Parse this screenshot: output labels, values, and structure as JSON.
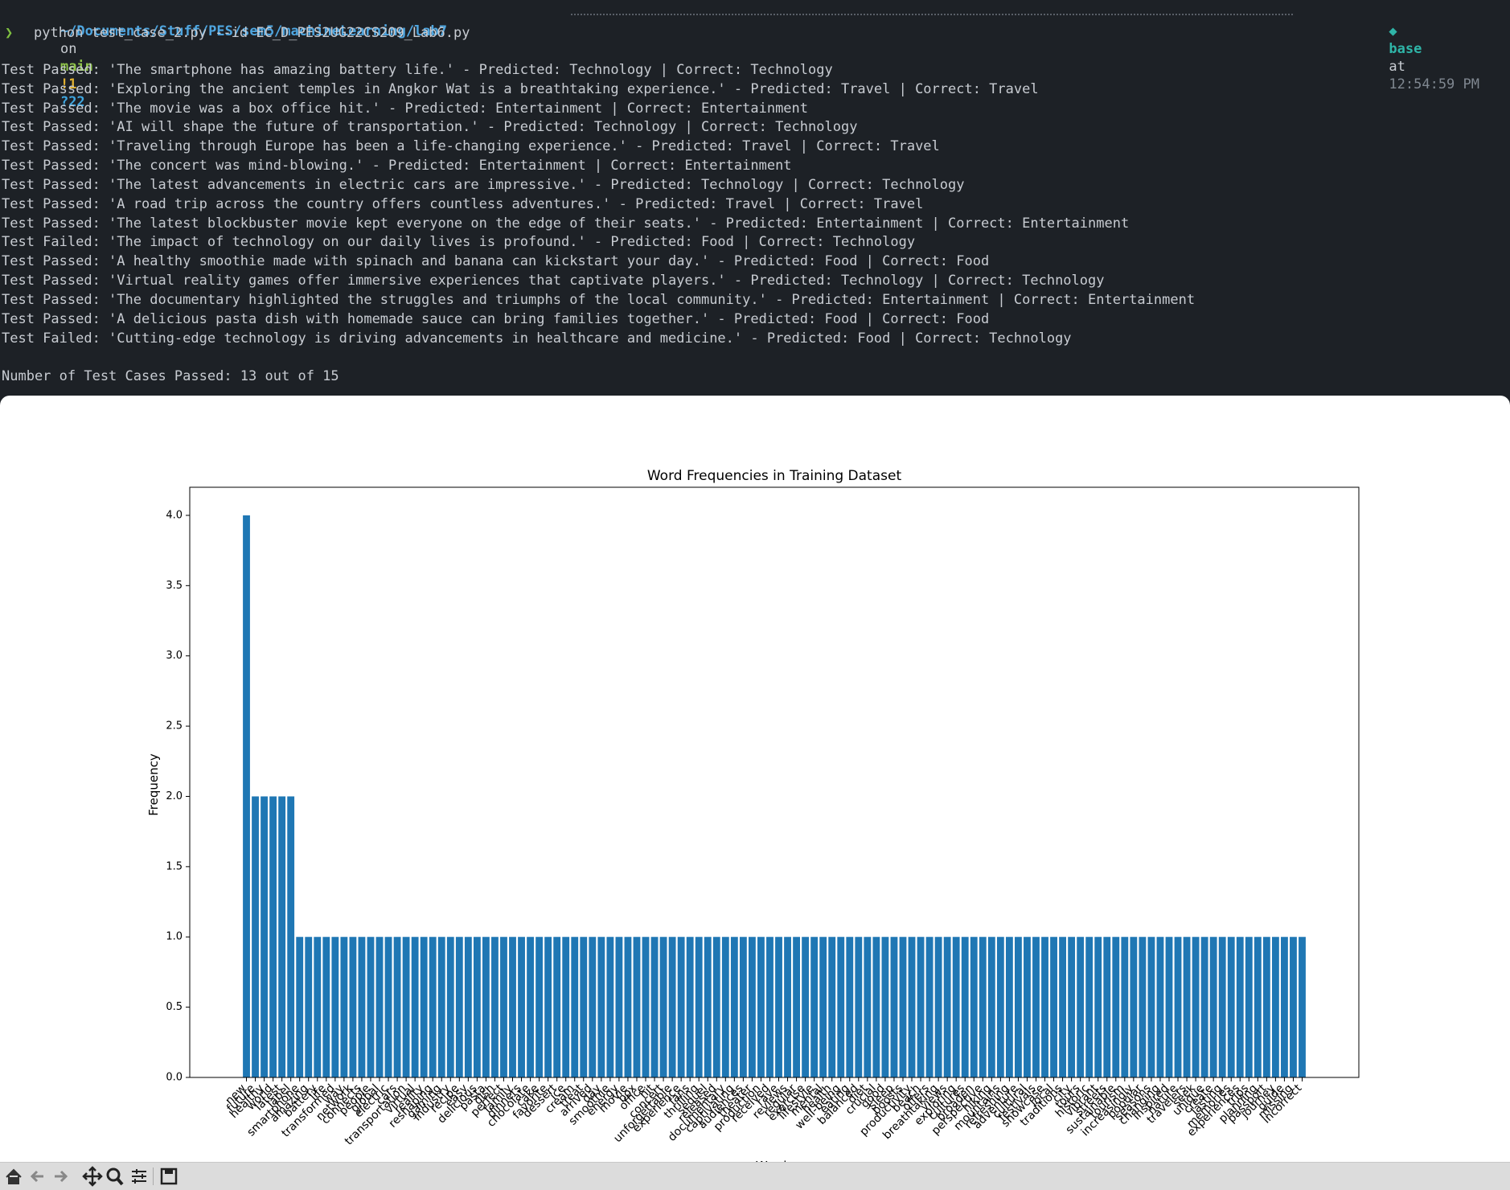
{
  "terminal": {
    "prompt": {
      "path": "~/Documents/Stuff/PES/sem5/machineLearning/lab7",
      "on": "on",
      "branch": "main",
      "modified": "!1",
      "untracked": "?22",
      "env": "base",
      "at": "at",
      "time": "12:54:59 PM"
    },
    "command": "python test_case_2.py --id EC_D_PES2UG22CS209_Lab6.py",
    "lines": [
      "Test Passed: 'The smartphone has amazing battery life.' - Predicted: Technology | Correct: Technology",
      "Test Passed: 'Exploring the ancient temples in Angkor Wat is a breathtaking experience.' - Predicted: Travel | Correct: Travel",
      "Test Passed: 'The movie was a box office hit.' - Predicted: Entertainment | Correct: Entertainment",
      "Test Passed: 'AI will shape the future of transportation.' - Predicted: Technology | Correct: Technology",
      "Test Passed: 'Traveling through Europe has been a life-changing experience.' - Predicted: Travel | Correct: Travel",
      "Test Passed: 'The concert was mind-blowing.' - Predicted: Entertainment | Correct: Entertainment",
      "Test Passed: 'The latest advancements in electric cars are impressive.' - Predicted: Technology | Correct: Technology",
      "Test Passed: 'A road trip across the country offers countless adventures.' - Predicted: Travel | Correct: Travel",
      "Test Passed: 'The latest blockbuster movie kept everyone on the edge of their seats.' - Predicted: Entertainment | Correct: Entertainment",
      "Test Failed: 'The impact of technology on our daily lives is profound.' - Predicted: Food | Correct: Technology",
      "Test Passed: 'A healthy smoothie made with spinach and banana can kickstart your day.' - Predicted: Food | Correct: Food",
      "Test Passed: 'Virtual reality games offer immersive experiences that captivate players.' - Predicted: Technology | Correct: Technology",
      "Test Passed: 'The documentary highlighted the struggles and triumphs of the local community.' - Predicted: Entertainment | Correct: Entertainment",
      "Test Passed: 'A delicious pasta dish with homemade sauce can bring families together.' - Predicted: Food | Correct: Food",
      "Test Failed: 'Cutting-edge technology is driving advancements in healthcare and medicine.' - Predicted: Food | Correct: Technology"
    ],
    "summary": "Number of Test Cases Passed: 13 out of 15"
  },
  "chart_data": {
    "type": "bar",
    "title": "Word Frequencies in Training Dataset",
    "xlabel": "Words",
    "ylabel": "Frequency",
    "color": "#1f77b4",
    "categories": [
      "new",
      "future",
      "healthy",
      "world",
      "latest",
      "label",
      "smartphone",
      "amazing",
      "battery",
      "life",
      "transformed",
      "way",
      "network",
      "connects",
      "people",
      "global",
      "electric",
      "cars",
      "transportation",
      "virtual",
      "reality",
      "reshaping",
      "gaming",
      "industry",
      "recipe",
      "easy",
      "delicious",
      "pasta",
      "dish",
      "perfect",
      "family",
      "dinners",
      "chocolate",
      "cake",
      "favorite",
      "dessert",
      "ice",
      "cream",
      "treat",
      "arrived",
      "day",
      "smoothie",
      "energy",
      "movie",
      "box",
      "office",
      "hit",
      "concert",
      "unforgettable",
      "experience",
      "fans",
      "thrilling",
      "sequel",
      "released",
      "documentary",
      "captivating",
      "audiences",
      "theater",
      "production",
      "received",
      "rave",
      "reviews",
      "regular",
      "exercise",
      "lifestyle",
      "mental",
      "health",
      "well-being",
      "eating",
      "balanced",
      "diet",
      "crucial",
      "good",
      "sleep",
      "boosts",
      "productivity",
      "beach",
      "offers",
      "breathtaking",
      "views",
      "exploring",
      "cultures",
      "broaden",
      "perspective",
      "hiking",
      "mountains",
      "refreshing",
      "adventure",
      "cultural",
      "festivals",
      "showcase",
      "local",
      "traditions",
      "city",
      "tours",
      "historic",
      "vibrant",
      "streets",
      "sustainable",
      "tourism",
      "increasingly",
      "popular",
      "seasons",
      "changing",
      "inspired",
      "nature",
      "travelers",
      "seek",
      "unique",
      "create",
      "lasting",
      "memories",
      "experiences",
      "trips",
      "planning",
      "passport",
      "journey",
      "guide",
      "missing",
      "incorrect"
    ],
    "values": [
      4,
      2,
      2,
      2,
      2,
      2,
      1,
      1,
      1,
      1,
      1,
      1,
      1,
      1,
      1,
      1,
      1,
      1,
      1,
      1,
      1,
      1,
      1,
      1,
      1,
      1,
      1,
      1,
      1,
      1,
      1,
      1,
      1,
      1,
      1,
      1,
      1,
      1,
      1,
      1,
      1,
      1,
      1,
      1,
      1,
      1,
      1,
      1,
      1,
      1,
      1,
      1,
      1,
      1,
      1,
      1,
      1,
      1,
      1,
      1,
      1,
      1,
      1,
      1,
      1,
      1,
      1,
      1,
      1,
      1,
      1,
      1,
      1,
      1,
      1,
      1,
      1,
      1,
      1,
      1,
      1,
      1,
      1,
      1,
      1,
      1,
      1,
      1,
      1,
      1,
      1,
      1,
      1,
      1,
      1,
      1,
      1,
      1,
      1,
      1,
      1,
      1,
      1,
      1,
      1,
      1,
      1,
      1,
      1,
      1,
      1,
      1,
      1,
      1,
      1,
      1,
      1,
      1,
      1,
      1
    ],
    "ylim": [
      0,
      4.2
    ],
    "yticks": [
      {
        "value": 0,
        "label": "0.0"
      },
      {
        "value": 0.5,
        "label": "0.5"
      },
      {
        "value": 1,
        "label": "1.0"
      },
      {
        "value": 1.5,
        "label": "1.5"
      },
      {
        "value": 2,
        "label": "2.0"
      },
      {
        "value": 2.5,
        "label": "2.5"
      },
      {
        "value": 3,
        "label": "3.0"
      },
      {
        "value": 3.5,
        "label": "3.5"
      },
      {
        "value": 4,
        "label": "4.0"
      }
    ]
  }
}
